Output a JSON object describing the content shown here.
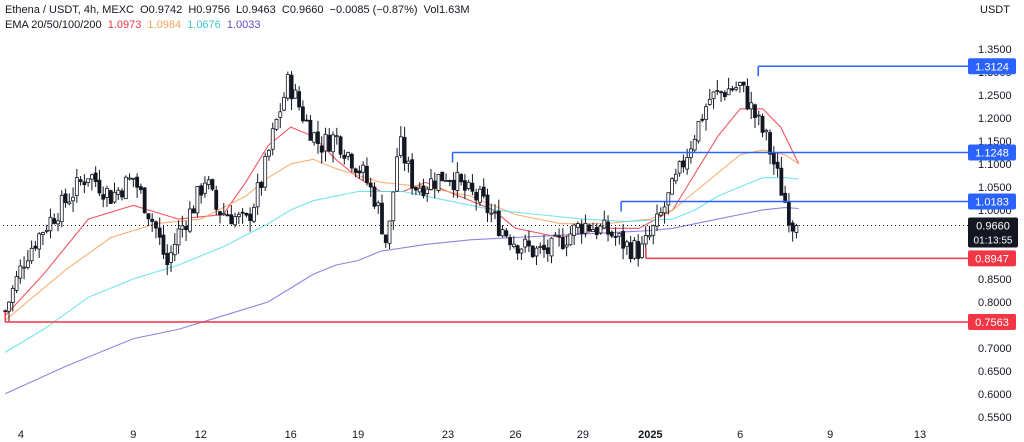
{
  "header": {
    "symbol": "Ethena / USDT, 4h, MEXC",
    "open_label": "O",
    "open": "0.9742",
    "high_label": "H",
    "high": "0.9756",
    "low_label": "L",
    "low": "0.9463",
    "close_label": "C",
    "close": "0.9660",
    "change": "−0.0085 (−0.87%)",
    "vol_label": "Vol",
    "vol": "1.63M",
    "ema_label": "EMA 20/50/100/200",
    "ema20": "1.0973",
    "ema50": "1.0984",
    "ema100": "1.0676",
    "ema200": "1.0033"
  },
  "colors": {
    "up": "#131722",
    "down": "#131722",
    "ema20": "#f23645",
    "ema50": "#f7a35c",
    "ema100": "#5ce0e6",
    "ema200": "#7b6fe0",
    "resistance": "#2962ff",
    "support": "#f23645"
  },
  "chart_data": {
    "type": "candlestick",
    "title": "Ethena / USDT, 4h, MEXC",
    "ylabel": "USDT",
    "ylim": [
      0.53,
      1.4
    ],
    "y_ticks": [
      "1.3500",
      "1.3000",
      "1.2500",
      "1.2000",
      "1.1500",
      "1.1000",
      "1.0500",
      "1.0000",
      "0.9500",
      "0.9000",
      "0.8500",
      "0.8000",
      "0.7500",
      "0.7000",
      "0.6500",
      "0.6000",
      "0.5500"
    ],
    "x_ticks": [
      "4",
      "9",
      "12",
      "16",
      "19",
      "23",
      "26",
      "29",
      "2025",
      "6",
      "9",
      "13"
    ],
    "x_tick_pos": [
      4,
      9,
      12,
      16,
      19,
      23,
      26,
      29,
      32,
      36,
      40,
      44
    ],
    "xlim": [
      3.2,
      46.0
    ],
    "price_path": [
      [
        3.3,
        0.78
      ],
      [
        4.2,
        0.9
      ],
      [
        5.0,
        0.96
      ],
      [
        6.0,
        1.02
      ],
      [
        7.0,
        1.08
      ],
      [
        8.0,
        1.03
      ],
      [
        9.0,
        1.07
      ],
      [
        10.0,
        0.96
      ],
      [
        10.5,
        0.88
      ],
      [
        11.0,
        0.95
      ],
      [
        11.7,
        1.01
      ],
      [
        12.2,
        1.07
      ],
      [
        12.7,
        1.0
      ],
      [
        13.3,
        0.99
      ],
      [
        14.0,
        0.97
      ],
      [
        14.7,
        1.06
      ],
      [
        15.3,
        1.18
      ],
      [
        15.9,
        1.28
      ],
      [
        16.6,
        1.2
      ],
      [
        17.3,
        1.14
      ],
      [
        18.0,
        1.16
      ],
      [
        18.6,
        1.12
      ],
      [
        19.2,
        1.08
      ],
      [
        19.8,
        1.02
      ],
      [
        20.3,
        0.92
      ],
      [
        20.8,
        1.15
      ],
      [
        21.5,
        1.05
      ],
      [
        22.2,
        1.06
      ],
      [
        23.0,
        1.08
      ],
      [
        23.8,
        1.04
      ],
      [
        24.5,
        1.02
      ],
      [
        25.2,
        0.97
      ],
      [
        26.0,
        0.93
      ],
      [
        26.8,
        0.91
      ],
      [
        27.5,
        0.91
      ],
      [
        28.2,
        0.94
      ],
      [
        29.0,
        0.97
      ],
      [
        29.6,
        0.96
      ],
      [
        30.2,
        0.95
      ],
      [
        31.0,
        0.92
      ],
      [
        31.6,
        0.91
      ],
      [
        32.3,
        0.97
      ],
      [
        33.2,
        1.07
      ],
      [
        34.0,
        1.17
      ],
      [
        34.6,
        1.24
      ],
      [
        35.3,
        1.26
      ],
      [
        36.0,
        1.27
      ],
      [
        36.6,
        1.21
      ],
      [
        37.2,
        1.15
      ],
      [
        37.8,
        1.05
      ],
      [
        38.3,
        0.97
      ],
      [
        38.5,
        0.966
      ]
    ],
    "series": [
      {
        "name": "EMA 20",
        "points": [
          [
            3.3,
            0.77
          ],
          [
            5,
            0.86
          ],
          [
            7,
            0.98
          ],
          [
            9,
            1.01
          ],
          [
            11,
            0.98
          ],
          [
            12,
            0.985
          ],
          [
            13,
            0.99
          ],
          [
            14,
            1.06
          ],
          [
            15,
            1.14
          ],
          [
            16,
            1.18
          ],
          [
            17,
            1.16
          ],
          [
            18,
            1.11
          ],
          [
            19,
            1.07
          ],
          [
            20,
            1.04
          ],
          [
            21,
            1.04
          ],
          [
            22,
            1.06
          ],
          [
            23,
            1.04
          ],
          [
            25,
            1.0
          ],
          [
            26,
            0.96
          ],
          [
            28,
            0.94
          ],
          [
            30,
            0.96
          ],
          [
            31.5,
            0.96
          ],
          [
            33,
            1.0
          ],
          [
            34,
            1.08
          ],
          [
            35,
            1.16
          ],
          [
            36,
            1.22
          ],
          [
            37,
            1.22
          ],
          [
            37.8,
            1.18
          ],
          [
            38.6,
            1.1
          ]
        ]
      },
      {
        "name": "EMA 50",
        "points": [
          [
            3.3,
            0.76
          ],
          [
            6,
            0.87
          ],
          [
            8,
            0.94
          ],
          [
            10,
            0.97
          ],
          [
            12,
            0.98
          ],
          [
            14,
            1.03
          ],
          [
            15,
            1.07
          ],
          [
            16,
            1.1
          ],
          [
            17,
            1.11
          ],
          [
            18,
            1.09
          ],
          [
            20,
            1.06
          ],
          [
            22,
            1.05
          ],
          [
            24,
            1.03
          ],
          [
            26,
            0.99
          ],
          [
            28,
            0.97
          ],
          [
            30,
            0.97
          ],
          [
            32,
            0.98
          ],
          [
            33,
            1.0
          ],
          [
            34,
            1.04
          ],
          [
            35,
            1.08
          ],
          [
            36,
            1.12
          ],
          [
            37,
            1.13
          ],
          [
            38,
            1.12
          ],
          [
            38.6,
            1.1
          ]
        ]
      },
      {
        "name": "EMA 100",
        "points": [
          [
            3.3,
            0.69
          ],
          [
            5,
            0.74
          ],
          [
            7,
            0.81
          ],
          [
            9,
            0.85
          ],
          [
            11,
            0.88
          ],
          [
            13,
            0.92
          ],
          [
            15,
            0.97
          ],
          [
            16,
            1.0
          ],
          [
            17,
            1.02
          ],
          [
            19,
            1.04
          ],
          [
            21,
            1.04
          ],
          [
            23,
            1.02
          ],
          [
            25,
            1.0
          ],
          [
            27,
            0.99
          ],
          [
            29,
            0.98
          ],
          [
            31,
            0.975
          ],
          [
            33,
            0.98
          ],
          [
            34,
            1.0
          ],
          [
            35,
            1.03
          ],
          [
            36,
            1.05
          ],
          [
            37,
            1.07
          ],
          [
            38,
            1.07
          ],
          [
            38.6,
            1.067
          ]
        ]
      },
      {
        "name": "EMA 200",
        "points": [
          [
            3.3,
            0.6
          ],
          [
            6,
            0.66
          ],
          [
            9,
            0.72
          ],
          [
            11,
            0.74
          ],
          [
            13,
            0.77
          ],
          [
            15,
            0.8
          ],
          [
            16,
            0.83
          ],
          [
            17,
            0.86
          ],
          [
            18,
            0.88
          ],
          [
            19,
            0.89
          ],
          [
            20,
            0.91
          ],
          [
            22,
            0.925
          ],
          [
            24,
            0.935
          ],
          [
            26,
            0.94
          ],
          [
            28,
            0.945
          ],
          [
            30,
            0.95
          ],
          [
            32,
            0.955
          ],
          [
            33,
            0.96
          ],
          [
            34,
            0.97
          ],
          [
            35,
            0.98
          ],
          [
            36,
            0.99
          ],
          [
            37,
            1.0
          ],
          [
            38,
            1.005
          ],
          [
            38.6,
            1.003
          ]
        ]
      }
    ],
    "levels": [
      {
        "label": "1.3124",
        "value": 1.3124,
        "from": 36.8,
        "kind": "resistance"
      },
      {
        "label": "1.1248",
        "value": 1.1248,
        "from": 23.2,
        "kind": "resistance"
      },
      {
        "label": "1.0183",
        "value": 1.0183,
        "from": 30.7,
        "kind": "resistance"
      },
      {
        "label": "0.8947",
        "value": 0.8947,
        "from": 31.8,
        "kind": "support"
      },
      {
        "label": "0.7563",
        "value": 0.7563,
        "from": 3.3,
        "kind": "support"
      }
    ],
    "current_price": {
      "value": 0.966,
      "label": "0.9660",
      "countdown": "01:13:55"
    }
  }
}
